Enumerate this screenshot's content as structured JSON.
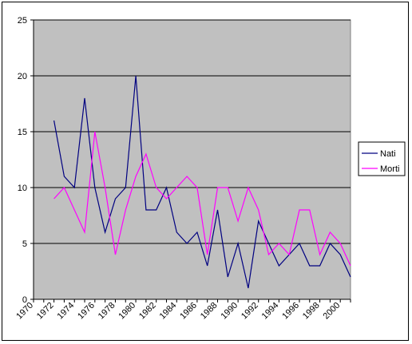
{
  "chart_data": {
    "type": "line",
    "title": "",
    "xlabel": "",
    "ylabel": "",
    "x": [
      1972,
      1973,
      1974,
      1975,
      1976,
      1977,
      1978,
      1979,
      1980,
      1981,
      1982,
      1983,
      1984,
      1985,
      1986,
      1987,
      1988,
      1989,
      1990,
      1991,
      1992,
      1993,
      1994,
      1995,
      1996,
      1997,
      1998,
      1999,
      2000,
      2001
    ],
    "series": [
      {
        "name": "Nati",
        "color": "#000080",
        "values": [
          16,
          11,
          10,
          18,
          10,
          6,
          9,
          10,
          20,
          8,
          8,
          10,
          6,
          5,
          6,
          3,
          8,
          2,
          5,
          1,
          7,
          5,
          3,
          4,
          5,
          3,
          3,
          5,
          4,
          2
        ]
      },
      {
        "name": "Morti",
        "color": "#ff00ff",
        "values": [
          9,
          10,
          8,
          6,
          15,
          10,
          4,
          8,
          11,
          13,
          10,
          9,
          10,
          11,
          10,
          4,
          10,
          10,
          7,
          10,
          8,
          4,
          5,
          4,
          8,
          8,
          4,
          6,
          5,
          3
        ]
      }
    ],
    "xlim": [
      1970,
      2001
    ],
    "ylim": [
      0,
      25
    ],
    "x_ticks": [
      "1970",
      "1972",
      "1974",
      "1976",
      "1978",
      "1980",
      "1982",
      "1984",
      "1986",
      "1988",
      "1990",
      "1992",
      "1994",
      "1996",
      "1998",
      "2000"
    ],
    "y_ticks": [
      "0",
      "5",
      "10",
      "15",
      "20",
      "25"
    ],
    "grid": "horizontal",
    "plot_background": "#c0c0c0",
    "legend": {
      "position": "right",
      "entries": [
        "Nati",
        "Morti"
      ]
    }
  }
}
